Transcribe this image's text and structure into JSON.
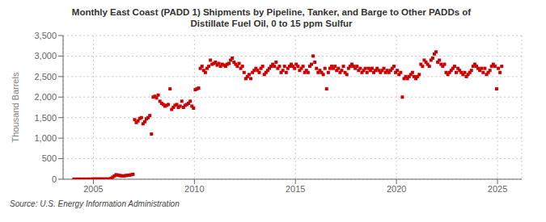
{
  "chart_data": {
    "type": "scatter",
    "title": "Monthly East Coast (PADD 1) Shipments by Pipeline, Tanker, and Barge to Other PADDs of\nDistillate Fuel Oil, 0 to 15 ppm Sulfur",
    "y_label": "Thousand Barrels",
    "source": "Source: U.S. Energy Information Administration",
    "color": "#cc0000",
    "marker": "square",
    "grid": true,
    "xlim": [
      2003.5,
      2026.2
    ],
    "xticks": [
      2005,
      2010,
      2015,
      2020,
      2025
    ],
    "ylim": [
      0,
      3500
    ],
    "yticks": [
      0,
      500,
      {
        "value": 1000,
        "label": "1,000"
      },
      {
        "value": 1500,
        "label": "1,500"
      },
      {
        "value": 2000,
        "label": "2,000"
      },
      {
        "value": 2500,
        "label": "2,500"
      },
      {
        "value": 3000,
        "label": "3,000"
      },
      {
        "value": 3500,
        "label": "3,500"
      }
    ],
    "x": [
      2004.0416666667,
      2004.125,
      2004.2083333333,
      2004.2916666667,
      2004.375,
      2004.4583333333,
      2004.5416666667,
      2004.625,
      2004.7083333333,
      2004.7916666667,
      2004.875,
      2004.9583333333,
      2005.0416666667,
      2005.125,
      2005.2083333333,
      2005.2916666667,
      2005.375,
      2005.4583333333,
      2005.5416666667,
      2005.625,
      2005.7083333333,
      2005.7916666667,
      2005.875,
      2005.9583333333,
      2006.0416666667,
      2006.125,
      2006.2083333333,
      2006.2916666667,
      2006.375,
      2006.4583333333,
      2006.5416666667,
      2006.625,
      2006.7083333333,
      2006.7916666667,
      2006.875,
      2006.9583333333,
      2007.0416666667,
      2007.125,
      2007.2083333333,
      2007.2916666667,
      2007.375,
      2007.4583333333,
      2007.5416666667,
      2007.625,
      2007.7083333333,
      2007.7916666667,
      2007.875,
      2007.9583333333,
      2008.0416666667,
      2008.125,
      2008.2083333333,
      2008.2916666667,
      2008.375,
      2008.4583333333,
      2008.5416666667,
      2008.625,
      2008.7083333333,
      2008.7916666667,
      2008.875,
      2008.9583333333,
      2009.0416666667,
      2009.125,
      2009.2083333333,
      2009.2916666667,
      2009.375,
      2009.4583333333,
      2009.5416666667,
      2009.625,
      2009.7083333333,
      2009.7916666667,
      2009.875,
      2009.9583333333,
      2010.0416666667,
      2010.125,
      2010.2083333333,
      2010.2916666667,
      2010.375,
      2010.4583333333,
      2010.5416666667,
      2010.625,
      2010.7083333333,
      2010.7916666667,
      2010.875,
      2010.9583333333,
      2011.0416666667,
      2011.125,
      2011.2083333333,
      2011.2916666667,
      2011.375,
      2011.4583333333,
      2011.5416666667,
      2011.625,
      2011.7083333333,
      2011.7916666667,
      2011.875,
      2011.9583333333,
      2012.0416666667,
      2012.125,
      2012.2083333333,
      2012.2916666667,
      2012.375,
      2012.4583333333,
      2012.5416666667,
      2012.625,
      2012.7083333333,
      2012.7916666667,
      2012.875,
      2012.9583333333,
      2013.0416666667,
      2013.125,
      2013.2083333333,
      2013.2916666667,
      2013.375,
      2013.4583333333,
      2013.5416666667,
      2013.625,
      2013.7083333333,
      2013.7916666667,
      2013.875,
      2013.9583333333,
      2014.0416666667,
      2014.125,
      2014.2083333333,
      2014.2916666667,
      2014.375,
      2014.4583333333,
      2014.5416666667,
      2014.625,
      2014.7083333333,
      2014.7916666667,
      2014.875,
      2014.9583333333,
      2015.0416666667,
      2015.125,
      2015.2083333333,
      2015.2916666667,
      2015.375,
      2015.4583333333,
      2015.5416666667,
      2015.625,
      2015.7083333333,
      2015.7916666667,
      2015.875,
      2015.9583333333,
      2016.0416666667,
      2016.125,
      2016.2083333333,
      2016.2916666667,
      2016.375,
      2016.4583333333,
      2016.5416666667,
      2016.625,
      2016.7083333333,
      2016.7916666667,
      2016.875,
      2016.9583333333,
      2017.0416666667,
      2017.125,
      2017.2083333333,
      2017.2916666667,
      2017.375,
      2017.4583333333,
      2017.5416666667,
      2017.625,
      2017.7083333333,
      2017.7916666667,
      2017.875,
      2017.9583333333,
      2018.0416666667,
      2018.125,
      2018.2083333333,
      2018.2916666667,
      2018.375,
      2018.4583333333,
      2018.5416666667,
      2018.625,
      2018.7083333333,
      2018.7916666667,
      2018.875,
      2018.9583333333,
      2019.0416666667,
      2019.125,
      2019.2083333333,
      2019.2916666667,
      2019.375,
      2019.4583333333,
      2019.5416666667,
      2019.625,
      2019.7083333333,
      2019.7916666667,
      2019.875,
      2019.9583333333,
      2020.0416666667,
      2020.125,
      2020.2083333333,
      2020.2916666667,
      2020.375,
      2020.4583333333,
      2020.5416666667,
      2020.625,
      2020.7083333333,
      2020.7916666667,
      2020.875,
      2020.9583333333,
      2021.0416666667,
      2021.125,
      2021.2083333333,
      2021.2916666667,
      2021.375,
      2021.4583333333,
      2021.5416666667,
      2021.625,
      2021.7083333333,
      2021.7916666667,
      2021.875,
      2021.9583333333,
      2022.0416666667,
      2022.125,
      2022.2083333333,
      2022.2916666667,
      2022.375,
      2022.4583333333,
      2022.5416666667,
      2022.625,
      2022.7083333333,
      2022.7916666667,
      2022.875,
      2022.9583333333,
      2023.0416666667,
      2023.125,
      2023.2083333333,
      2023.2916666667,
      2023.375,
      2023.4583333333,
      2023.5416666667,
      2023.625,
      2023.7083333333,
      2023.7916666667,
      2023.875,
      2023.9583333333,
      2024.0416666667,
      2024.125,
      2024.2083333333,
      2024.2916666667,
      2024.375,
      2024.4583333333,
      2024.5416666667,
      2024.625,
      2024.7083333333,
      2024.7916666667,
      2024.875,
      2024.9583333333,
      2025.0416666667,
      2025.125,
      2025.2083333333
    ],
    "values": [
      2,
      2,
      2,
      2,
      2,
      2,
      2,
      2,
      2,
      2,
      3,
      3,
      5,
      5,
      5,
      5,
      5,
      5,
      5,
      5,
      5,
      5,
      20,
      50,
      80,
      110,
      100,
      90,
      85,
      80,
      85,
      90,
      95,
      100,
      110,
      120,
      1450,
      1380,
      1420,
      1480,
      1500,
      1350,
      1400,
      1470,
      1500,
      1550,
      1100,
      2000,
      2020,
      1980,
      2050,
      1900,
      1850,
      1820,
      1780,
      1800,
      1820,
      2200,
      1700,
      1750,
      1800,
      1820,
      1750,
      1780,
      1900,
      1750,
      1800,
      1820,
      1850,
      1900,
      1780,
      1730,
      2180,
      2200,
      2220,
      2700,
      2750,
      2650,
      2600,
      2700,
      2750,
      2900,
      2800,
      2820,
      2850,
      2780,
      2820,
      2750,
      2800,
      2780,
      2750,
      2800,
      2820,
      2900,
      2950,
      2850,
      2800,
      2750,
      2820,
      2700,
      2750,
      2600,
      2450,
      2500,
      2550,
      2450,
      2600,
      2650,
      2700,
      2650,
      2600,
      2700,
      2750,
      2550,
      2600,
      2650,
      2700,
      2750,
      2800,
      2750,
      2850,
      2700,
      2750,
      2600,
      2650,
      2750,
      2600,
      2700,
      2750,
      2800,
      2750,
      2700,
      2800,
      2750,
      2650,
      2700,
      2750,
      2600,
      2650,
      2600,
      2750,
      2800,
      3000,
      2850,
      2700,
      2600,
      2650,
      2600,
      2550,
      2700,
      2200,
      2600,
      2700,
      2750,
      2700,
      2750,
      2650,
      2700,
      2600,
      2650,
      2750,
      2600,
      2550,
      2700,
      2750,
      2800,
      2750,
      2700,
      2750,
      2650,
      2700,
      2600,
      2650,
      2700,
      2600,
      2700,
      2650,
      2700,
      2600,
      2650,
      2700,
      2650,
      2600,
      2650,
      2700,
      2600,
      2650,
      2600,
      2650,
      2700,
      2750,
      2600,
      2650,
      2550,
      2600,
      2000,
      2450,
      2500,
      2450,
      2500,
      2550,
      2600,
      2500,
      2450,
      2500,
      2550,
      2800,
      2750,
      2900,
      2850,
      2800,
      2750,
      2900,
      2950,
      3050,
      3100,
      2850,
      2900,
      2800,
      2750,
      2800,
      2600,
      2550,
      2600,
      2650,
      2700,
      2750,
      2600,
      2700,
      2650,
      2600,
      2550,
      2600,
      2500,
      2550,
      2600,
      2650,
      2750,
      2800,
      2750,
      2700,
      2650,
      2700,
      2600,
      2700,
      2550,
      2600,
      2650,
      2750,
      2800,
      2750,
      2200,
      2700,
      2600,
      2750
    ]
  }
}
